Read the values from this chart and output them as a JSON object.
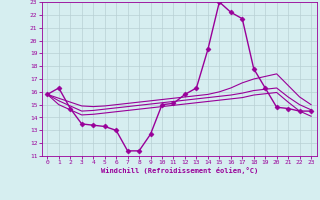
{
  "xlabel": "Windchill (Refroidissement éolien,°C)",
  "background_color": "#d6eef0",
  "grid_color": "#b8d0d4",
  "line_color": "#990099",
  "x_ticks": [
    0,
    1,
    2,
    3,
    4,
    5,
    6,
    7,
    8,
    9,
    10,
    11,
    12,
    13,
    14,
    15,
    16,
    17,
    18,
    19,
    20,
    21,
    22,
    23
  ],
  "y_ticks": [
    11,
    12,
    13,
    14,
    15,
    16,
    17,
    18,
    19,
    20,
    21,
    22,
    23
  ],
  "xlim": [
    -0.5,
    23.5
  ],
  "ylim": [
    11,
    23
  ],
  "series": [
    {
      "x": [
        0,
        1,
        2,
        3,
        4,
        5,
        6,
        7,
        8,
        9,
        10,
        11,
        12,
        13,
        14,
        15,
        16,
        17,
        18,
        19,
        20,
        21,
        22,
        23
      ],
      "y": [
        15.8,
        16.3,
        14.7,
        13.5,
        13.4,
        13.3,
        13.0,
        11.4,
        11.4,
        12.7,
        15.0,
        15.1,
        15.8,
        16.3,
        19.3,
        23.0,
        22.2,
        21.7,
        17.8,
        16.3,
        14.8,
        14.7,
        14.5,
        14.5
      ],
      "marker": "D",
      "markersize": 2.5,
      "linewidth": 1.0
    },
    {
      "x": [
        0,
        1,
        2,
        3,
        4,
        5,
        6,
        7,
        8,
        9,
        10,
        11,
        12,
        13,
        14,
        15,
        16,
        17,
        18,
        19,
        20,
        21,
        22,
        23
      ],
      "y": [
        15.8,
        15.5,
        15.2,
        14.9,
        14.85,
        14.9,
        15.0,
        15.1,
        15.2,
        15.3,
        15.4,
        15.5,
        15.6,
        15.7,
        15.8,
        16.0,
        16.3,
        16.7,
        17.0,
        17.2,
        17.4,
        16.5,
        15.6,
        15.0
      ],
      "marker": null,
      "markersize": 0,
      "linewidth": 0.8
    },
    {
      "x": [
        0,
        1,
        2,
        3,
        4,
        5,
        6,
        7,
        8,
        9,
        10,
        11,
        12,
        13,
        14,
        15,
        16,
        17,
        18,
        19,
        20,
        21,
        22,
        23
      ],
      "y": [
        15.8,
        15.3,
        14.9,
        14.5,
        14.55,
        14.65,
        14.75,
        14.85,
        14.95,
        15.05,
        15.15,
        15.25,
        15.35,
        15.45,
        15.55,
        15.65,
        15.75,
        15.9,
        16.1,
        16.2,
        16.3,
        15.6,
        15.0,
        14.6
      ],
      "marker": null,
      "markersize": 0,
      "linewidth": 0.8
    },
    {
      "x": [
        0,
        1,
        2,
        3,
        4,
        5,
        6,
        7,
        8,
        9,
        10,
        11,
        12,
        13,
        14,
        15,
        16,
        17,
        18,
        19,
        20,
        21,
        22,
        23
      ],
      "y": [
        15.8,
        15.0,
        14.6,
        14.2,
        14.25,
        14.35,
        14.45,
        14.55,
        14.65,
        14.75,
        14.85,
        14.95,
        15.05,
        15.15,
        15.25,
        15.35,
        15.45,
        15.55,
        15.75,
        15.85,
        15.95,
        15.2,
        14.5,
        14.1
      ],
      "marker": null,
      "markersize": 0,
      "linewidth": 0.8
    }
  ]
}
